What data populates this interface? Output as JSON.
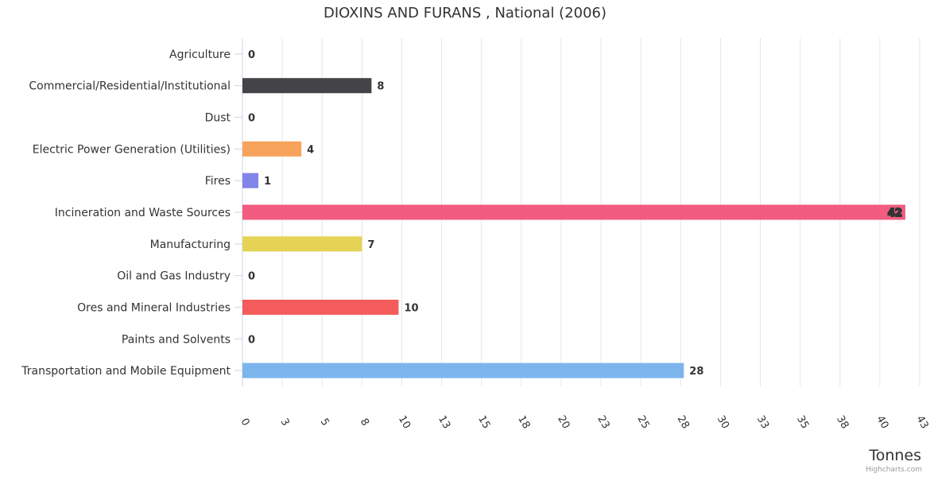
{
  "chart_data": {
    "type": "bar",
    "orientation": "horizontal",
    "title": "DIOXINS AND FURANS , National (2006)",
    "xlabel": "Tonnes",
    "categories": [
      "Agriculture",
      "Commercial/Residential/Institutional",
      "Dust",
      "Electric Power Generation (Utilities)",
      "Fires",
      "Incineration and Waste Sources",
      "Manufacturing",
      "Oil and Gas Industry",
      "Ores and Mineral Industries",
      "Paints and Solvents",
      "Transportation and Mobile Equipment"
    ],
    "values": [
      0,
      8,
      0,
      4,
      1,
      42,
      7,
      0,
      10,
      0,
      28
    ],
    "bar_values": [
      0,
      8.1,
      0,
      3.7,
      1,
      41.6,
      7.5,
      0,
      9.8,
      0,
      27.7
    ],
    "colors": [
      "#7cb5ec",
      "#434348",
      "#90ed7d",
      "#f7a35c",
      "#8085e9",
      "#f15c80",
      "#e4d354",
      "#2b908f",
      "#f45b5b",
      "#91e8e1",
      "#7cb5ec"
    ],
    "tick_labels": [
      "0",
      "3",
      "5",
      "8",
      "10",
      "13",
      "15",
      "18",
      "20",
      "23",
      "25",
      "28",
      "30",
      "33",
      "35",
      "38",
      "40",
      "43"
    ],
    "xlim": [
      0,
      42.5
    ],
    "grid": true,
    "legend": "none"
  },
  "credits": "Highcharts.com"
}
